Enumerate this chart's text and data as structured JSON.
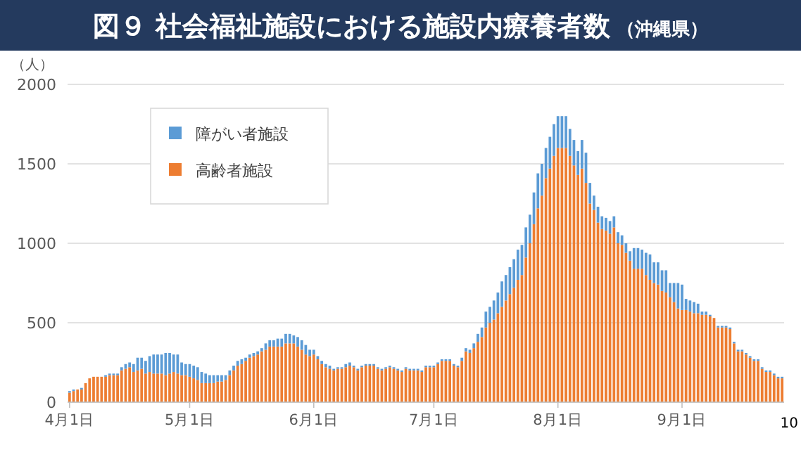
{
  "chart_data": {
    "type": "bar",
    "stacked": true,
    "title": "図９ 社会福祉施設における施設内療養者数",
    "subtitle": "（沖縄県）",
    "ylabel": "（人）",
    "annotations": [
      "10"
    ],
    "categories": [
      "4月1日",
      null,
      null,
      null,
      null,
      null,
      null,
      null,
      null,
      null,
      null,
      null,
      null,
      null,
      null,
      null,
      null,
      null,
      null,
      null,
      null,
      null,
      null,
      null,
      null,
      null,
      null,
      null,
      null,
      null,
      "5月1日",
      null,
      null,
      null,
      null,
      null,
      null,
      null,
      null,
      null,
      null,
      null,
      null,
      null,
      null,
      null,
      null,
      null,
      null,
      null,
      null,
      null,
      null,
      null,
      null,
      null,
      null,
      null,
      null,
      null,
      null,
      "6月1日",
      null,
      null,
      null,
      null,
      null,
      null,
      null,
      null,
      null,
      null,
      null,
      null,
      null,
      null,
      null,
      null,
      null,
      null,
      null,
      null,
      null,
      null,
      null,
      null,
      null,
      null,
      null,
      null,
      null,
      "7月1日",
      null,
      null,
      null,
      null,
      null,
      null,
      null,
      null,
      null,
      null,
      null,
      null,
      null,
      null,
      null,
      null,
      null,
      null,
      null,
      null,
      null,
      null,
      null,
      null,
      null,
      null,
      null,
      null,
      null,
      null,
      "8月1日",
      null,
      null,
      null,
      null,
      null,
      null,
      null,
      null,
      null,
      null,
      null,
      null,
      null,
      null,
      null,
      null,
      null,
      null,
      null,
      null,
      null,
      null,
      null,
      null,
      null,
      null,
      null,
      null,
      null,
      null,
      "9月1日",
      null,
      null,
      null,
      null,
      null,
      null,
      null,
      null,
      null,
      null,
      null,
      null,
      null,
      null,
      null,
      null,
      null,
      null,
      null,
      null,
      null,
      null,
      null,
      null,
      null
    ],
    "series": [
      {
        "name": "高齢者施設",
        "color": "#ed7d31",
        "values": [
          60,
          70,
          80,
          80,
          120,
          150,
          160,
          160,
          160,
          160,
          170,
          170,
          170,
          200,
          210,
          220,
          190,
          200,
          210,
          180,
          190,
          180,
          180,
          180,
          170,
          180,
          190,
          180,
          170,
          170,
          160,
          150,
          140,
          120,
          120,
          120,
          120,
          130,
          130,
          140,
          170,
          200,
          230,
          240,
          260,
          280,
          290,
          300,
          320,
          330,
          350,
          350,
          350,
          350,
          370,
          370,
          370,
          350,
          330,
          300,
          290,
          300,
          270,
          240,
          220,
          210,
          200,
          210,
          210,
          220,
          230,
          220,
          200,
          220,
          230,
          230,
          230,
          210,
          200,
          210,
          220,
          210,
          200,
          190,
          210,
          200,
          200,
          200,
          190,
          220,
          220,
          220,
          240,
          260,
          260,
          260,
          230,
          220,
          260,
          320,
          310,
          340,
          380,
          410,
          470,
          500,
          520,
          560,
          600,
          640,
          680,
          720,
          770,
          800,
          910,
          1000,
          1120,
          1220,
          1300,
          1410,
          1470,
          1550,
          1600,
          1600,
          1600,
          1550,
          1490,
          1430,
          1470,
          1380,
          1250,
          1210,
          1130,
          1090,
          1080,
          1060,
          1100,
          1000,
          990,
          940,
          890,
          840,
          840,
          840,
          800,
          770,
          750,
          740,
          700,
          690,
          660,
          630,
          590,
          580,
          580,
          570,
          560,
          560,
          550,
          550,
          540,
          530,
          470,
          470,
          470,
          460,
          370,
          320,
          320,
          300,
          280,
          260,
          260,
          210,
          190,
          190,
          170,
          150,
          150
        ]
      },
      {
        "name": "障がい者施設",
        "color": "#5b9bd5",
        "values": [
          10,
          10,
          0,
          10,
          0,
          0,
          0,
          0,
          0,
          10,
          10,
          10,
          10,
          20,
          30,
          30,
          50,
          80,
          70,
          80,
          100,
          120,
          120,
          120,
          140,
          130,
          110,
          120,
          80,
          70,
          80,
          80,
          80,
          70,
          60,
          50,
          50,
          40,
          40,
          30,
          30,
          30,
          30,
          30,
          20,
          20,
          20,
          20,
          20,
          40,
          40,
          40,
          50,
          50,
          60,
          60,
          50,
          60,
          60,
          60,
          40,
          30,
          20,
          20,
          20,
          20,
          10,
          10,
          10,
          20,
          20,
          10,
          10,
          10,
          10,
          10,
          10,
          10,
          10,
          10,
          10,
          10,
          10,
          10,
          10,
          10,
          10,
          10,
          10,
          10,
          10,
          10,
          10,
          10,
          10,
          10,
          10,
          10,
          20,
          20,
          20,
          30,
          50,
          60,
          100,
          100,
          120,
          130,
          160,
          160,
          170,
          180,
          190,
          190,
          190,
          180,
          200,
          220,
          200,
          190,
          200,
          200,
          200,
          200,
          200,
          170,
          160,
          150,
          180,
          190,
          130,
          90,
          100,
          80,
          80,
          80,
          70,
          70,
          60,
          60,
          60,
          130,
          130,
          120,
          140,
          160,
          130,
          140,
          130,
          140,
          90,
          120,
          160,
          160,
          70,
          70,
          70,
          60,
          20,
          20,
          10,
          0,
          10,
          10,
          10,
          10,
          10,
          10,
          10,
          10,
          10,
          10,
          10,
          10,
          10,
          10,
          10,
          10,
          10
        ]
      }
    ],
    "ylim": [
      0,
      2000
    ],
    "yticks": [
      0,
      500,
      1000,
      1500,
      2000
    ],
    "grid": "y",
    "legend": "top left"
  }
}
